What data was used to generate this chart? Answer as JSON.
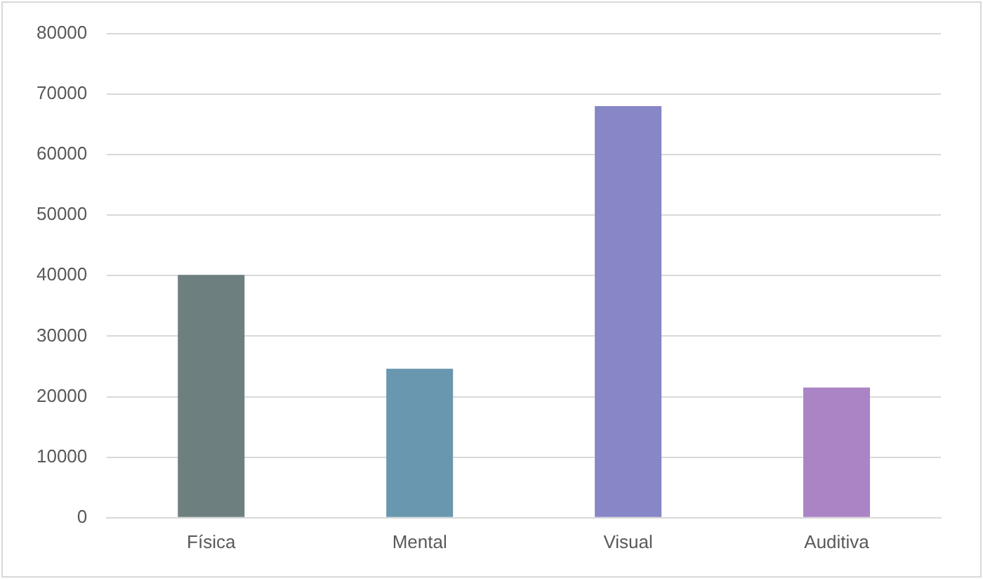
{
  "chart_data": {
    "type": "bar",
    "categories": [
      "Física",
      "Mental",
      "Visual",
      "Auditiva"
    ],
    "values": [
      40100,
      24600,
      68000,
      21500
    ],
    "colors": [
      "#6e7f80",
      "#6997b0",
      "#8786c6",
      "#ab84c6"
    ],
    "ylim": [
      0,
      80000
    ],
    "yticks": [
      0,
      10000,
      20000,
      30000,
      40000,
      50000,
      60000,
      70000,
      80000
    ],
    "grid": "y"
  }
}
